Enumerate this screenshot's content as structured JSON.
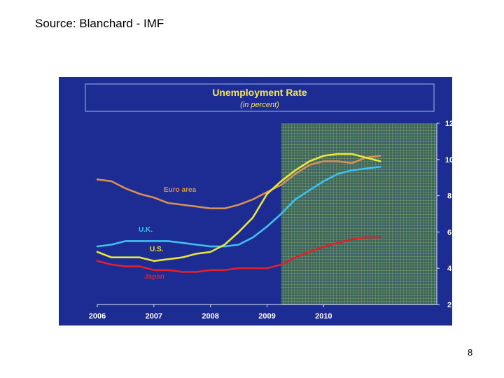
{
  "source_text": "Source: Blanchard - IMF",
  "page_number": "8",
  "chart_data": {
    "type": "line",
    "title": "Unemployment Rate",
    "subtitle": "(in percent)",
    "xlabel": "",
    "ylabel": "",
    "x_ticks": [
      "2006",
      "2007",
      "2008",
      "2009",
      "2010"
    ],
    "y_ticks": [
      "2",
      "4",
      "6",
      "8",
      "10",
      "12"
    ],
    "xlim": [
      2006,
      2012
    ],
    "ylim": [
      2,
      12
    ],
    "forecast_start": 2009.25,
    "grid": false,
    "series": [
      {
        "name": "Euro area",
        "color": "#d88e55",
        "x": [
          2006.0,
          2006.25,
          2006.5,
          2006.75,
          2007.0,
          2007.25,
          2007.5,
          2007.75,
          2008.0,
          2008.25,
          2008.5,
          2008.75,
          2009.0,
          2009.25,
          2009.5,
          2009.75,
          2010.0,
          2010.25,
          2010.5,
          2010.75,
          2011.0
        ],
        "y": [
          8.9,
          8.8,
          8.4,
          8.1,
          7.9,
          7.6,
          7.5,
          7.4,
          7.3,
          7.3,
          7.5,
          7.8,
          8.2,
          8.6,
          9.2,
          9.7,
          9.9,
          9.9,
          9.8,
          10.1,
          10.2
        ]
      },
      {
        "name": "U.K.",
        "color": "#3fc0f0",
        "x": [
          2006.0,
          2006.25,
          2006.5,
          2006.75,
          2007.0,
          2007.25,
          2007.5,
          2007.75,
          2008.0,
          2008.25,
          2008.5,
          2008.75,
          2009.0,
          2009.25,
          2009.5,
          2009.75,
          2010.0,
          2010.25,
          2010.5,
          2010.75,
          2011.0
        ],
        "y": [
          5.2,
          5.3,
          5.5,
          5.5,
          5.5,
          5.5,
          5.4,
          5.3,
          5.2,
          5.2,
          5.3,
          5.7,
          6.3,
          7.0,
          7.8,
          8.3,
          8.8,
          9.2,
          9.4,
          9.5,
          9.6
        ]
      },
      {
        "name": "U.S.",
        "color": "#e6e83a",
        "x": [
          2006.0,
          2006.25,
          2006.5,
          2006.75,
          2007.0,
          2007.25,
          2007.5,
          2007.75,
          2008.0,
          2008.25,
          2008.5,
          2008.75,
          2009.0,
          2009.25,
          2009.5,
          2009.75,
          2010.0,
          2010.25,
          2010.5,
          2010.75,
          2011.0
        ],
        "y": [
          4.9,
          4.6,
          4.6,
          4.6,
          4.4,
          4.5,
          4.6,
          4.8,
          4.9,
          5.3,
          6.0,
          6.8,
          8.1,
          8.8,
          9.4,
          9.9,
          10.2,
          10.3,
          10.3,
          10.1,
          9.9
        ]
      },
      {
        "name": "Japan",
        "color": "#e0202a",
        "x": [
          2006.0,
          2006.25,
          2006.5,
          2006.75,
          2007.0,
          2007.25,
          2007.5,
          2007.75,
          2008.0,
          2008.25,
          2008.5,
          2008.75,
          2009.0,
          2009.25,
          2009.5,
          2009.75,
          2010.0,
          2010.25,
          2010.5,
          2010.75,
          2011.0
        ],
        "y": [
          4.4,
          4.2,
          4.1,
          4.1,
          3.9,
          3.9,
          3.8,
          3.8,
          3.9,
          3.9,
          4.0,
          4.0,
          4.0,
          4.2,
          4.6,
          4.9,
          5.2,
          5.4,
          5.6,
          5.7,
          5.7
        ]
      }
    ]
  }
}
